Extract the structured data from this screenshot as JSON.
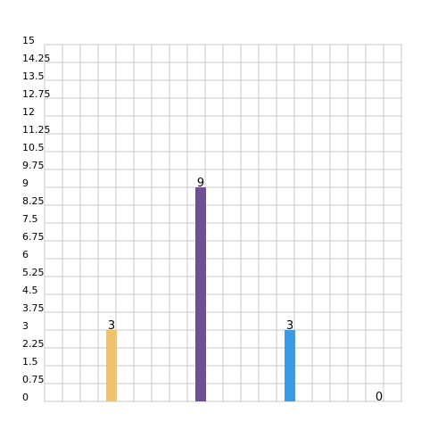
{
  "chart_data": {
    "type": "bar",
    "title": "",
    "xlabel": "",
    "ylabel": "",
    "ylim": [
      0,
      15
    ],
    "y_ticks": [
      "0",
      "0.75",
      "1.5",
      "2.25",
      "3",
      "3.75",
      "4.5",
      "5.25",
      "6",
      "6.75",
      "7.5",
      "8.25",
      "9",
      "9.75",
      "10.5",
      "11.25",
      "12",
      "12.75",
      "13.5",
      "14.25",
      "15"
    ],
    "grid": true,
    "legend": "none",
    "bars": [
      {
        "value": 3,
        "label": "3",
        "color": "#f0c26a"
      },
      {
        "value": 9,
        "label": "9",
        "color": "#6f4f96"
      },
      {
        "value": 3,
        "label": "3",
        "color": "#3a9ae6"
      },
      {
        "value": 0,
        "label": "0",
        "color": "#2a9d8f"
      }
    ]
  }
}
